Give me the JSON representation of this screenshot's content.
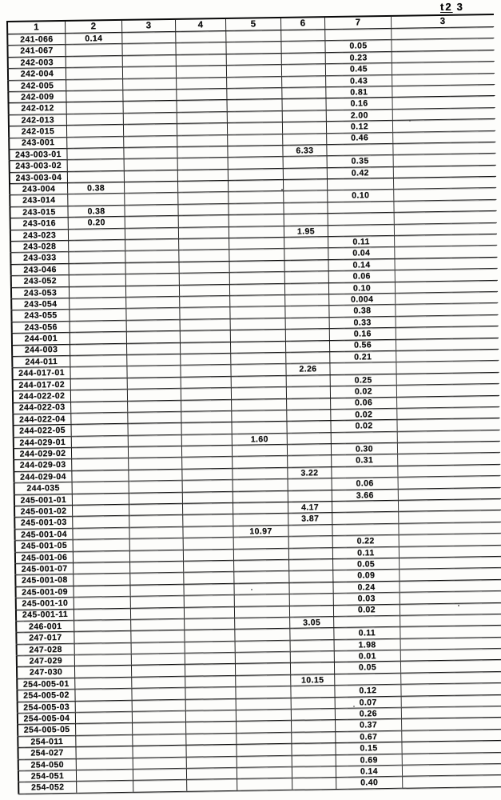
{
  "page": {
    "mark_left": "t2",
    "mark_right": "3"
  },
  "table": {
    "columns": [
      "1",
      "2",
      "3",
      "4",
      "5",
      "6",
      "7",
      "3"
    ],
    "rows": [
      {
        "label": "241-066",
        "c2": "0.14"
      },
      {
        "label": "241-067",
        "c7": "0.05"
      },
      {
        "label": "242-003",
        "c7": "0.23"
      },
      {
        "label": "242-004",
        "c7": "0.45"
      },
      {
        "label": "242-005",
        "c7": "0.43"
      },
      {
        "label": "242-009",
        "c7": "0.81"
      },
      {
        "label": "242-012",
        "c7": "0.16"
      },
      {
        "label": "242-013",
        "c7": "2.00"
      },
      {
        "label": "242-015",
        "c7": "0.12"
      },
      {
        "label": "243-001",
        "c7": "0.46"
      },
      {
        "label": "243-003-01",
        "c6": "6.33"
      },
      {
        "label": "243-003-02",
        "c7": "0.35"
      },
      {
        "label": "243-003-04",
        "c7": "0.42"
      },
      {
        "label": "243-004",
        "c2": "0.38"
      },
      {
        "label": "243-014",
        "c7": "0.10"
      },
      {
        "label": "243-015",
        "c2": "0.38"
      },
      {
        "label": "243-016",
        "c2": "0.20"
      },
      {
        "label": "243-023",
        "c6": "1.95"
      },
      {
        "label": "243-028",
        "c7": "0.11"
      },
      {
        "label": "243-033",
        "c7": "0.04"
      },
      {
        "label": "243-046",
        "c7": "0.14"
      },
      {
        "label": "243-052",
        "c7": "0.06"
      },
      {
        "label": "243-053",
        "c7": "0.10"
      },
      {
        "label": "243-054",
        "c7": "0.004"
      },
      {
        "label": "243-055",
        "c7": "0.38"
      },
      {
        "label": "243-056",
        "c7": "0.33"
      },
      {
        "label": "244-001",
        "c7": "0.16"
      },
      {
        "label": "244-003",
        "c7": "0.56"
      },
      {
        "label": "244-011",
        "c7": "0.21"
      },
      {
        "label": "244-017-01",
        "c6": "2.26"
      },
      {
        "label": "244-017-02",
        "c7": "0.25"
      },
      {
        "label": "244-022-02",
        "c7": "0.02"
      },
      {
        "label": "244-022-03",
        "c7": "0.06"
      },
      {
        "label": "244-022-04",
        "c7": "0.02"
      },
      {
        "label": "244-022-05",
        "c7": "0.02"
      },
      {
        "label": "244-029-01",
        "c5": "1.60"
      },
      {
        "label": "244-029-02",
        "c7": "0.30"
      },
      {
        "label": "244-029-03",
        "c7": "0.31"
      },
      {
        "label": "244-029-04",
        "c6": "3.22"
      },
      {
        "label": "244-035",
        "c7": "0.06"
      },
      {
        "label": "245-001-01",
        "c7": "3.66"
      },
      {
        "label": "245-001-02",
        "c6": "4.17"
      },
      {
        "label": "245-001-03",
        "c6": "3.87"
      },
      {
        "label": "245-001-04",
        "c5": "10.97"
      },
      {
        "label": "245-001-05",
        "c7": "0.22"
      },
      {
        "label": "245-001-06",
        "c7": "0.11"
      },
      {
        "label": "245-001-07",
        "c7": "0.05"
      },
      {
        "label": "245-001-08",
        "c7": "0.09"
      },
      {
        "label": "245-001-09",
        "c7": "0.24"
      },
      {
        "label": "245-001-10",
        "c7": "0.03"
      },
      {
        "label": "245-001-11",
        "c7": "0.02"
      },
      {
        "label": "246-001",
        "c6": "3.05"
      },
      {
        "label": "247-017",
        "c7": "0.11"
      },
      {
        "label": "247-028",
        "c7": "1.98"
      },
      {
        "label": "247-029",
        "c7": "0.01"
      },
      {
        "label": "247-030",
        "c7": "0.05"
      },
      {
        "label": "254-005-01",
        "c6": "10.15"
      },
      {
        "label": "254-005-02",
        "c7": "0.12"
      },
      {
        "label": "254-005-03",
        "c7": "0.07"
      },
      {
        "label": "254-005-04",
        "c7": "0.26"
      },
      {
        "label": "254-005-05",
        "c7": "0.37"
      },
      {
        "label": "254-011",
        "c7": "0.67"
      },
      {
        "label": "254-027",
        "c7": "0.15"
      },
      {
        "label": "254-050",
        "c7": "0.69"
      },
      {
        "label": "254-051",
        "c7": "0.14"
      },
      {
        "label": "254-052",
        "c7": "0.40"
      }
    ]
  }
}
